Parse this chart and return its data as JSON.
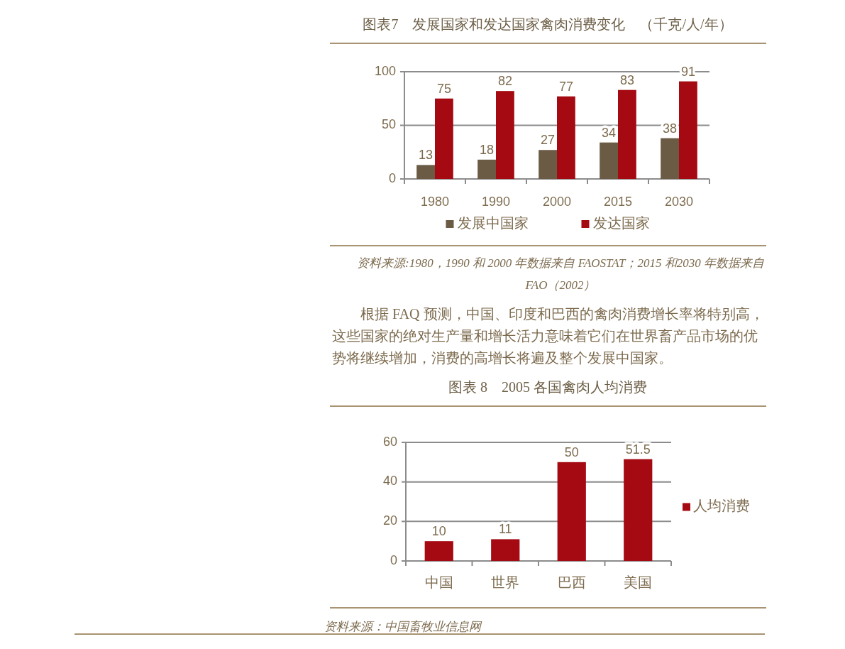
{
  "chart_data": [
    {
      "type": "bar",
      "title": "图表7　发展国家和发达国家禽肉消费变化　（千克/人/年）",
      "categories": [
        "1980",
        "1990",
        "2000",
        "2015",
        "2030"
      ],
      "series": [
        {
          "name": "发展中国家",
          "color": "#6b5b45",
          "values": [
            13,
            18,
            27,
            34,
            38
          ]
        },
        {
          "name": "发达国家",
          "color": "#a50a12",
          "values": [
            75,
            82,
            77,
            83,
            91
          ]
        }
      ],
      "ylim": [
        0,
        100
      ],
      "yticks": [
        0,
        50,
        100
      ],
      "grid": "y",
      "legend": "bottom",
      "data_labels": true,
      "annotations": [
        "资料来源:1980，1990 和 2000 年数据来自 FAOSTAT；2015 和2030 年数据来自FAO（2002）",
        "根据 FAQ 预测，中国、印度和巴西的禽肉消费增长率将特别高，这些国家的绝对生产量和增长活力意味着它们在世界畜产品市场的优势将继续增加，消费的高增长将遍及整个发展中国家。"
      ]
    },
    {
      "type": "bar",
      "title": "图表 8　2005 各国禽肉人均消费",
      "categories": [
        "中国",
        "世界",
        "巴西",
        "美国"
      ],
      "series": [
        {
          "name": "人均消费",
          "color": "#a50a12",
          "values": [
            10,
            11,
            50,
            51.5
          ]
        }
      ],
      "ylim": [
        0,
        60
      ],
      "yticks": [
        0,
        20,
        40,
        60
      ],
      "grid": "y",
      "legend": "right",
      "data_labels": true,
      "annotations": [
        "资料来源：中国畜牧业信息网"
      ]
    }
  ]
}
